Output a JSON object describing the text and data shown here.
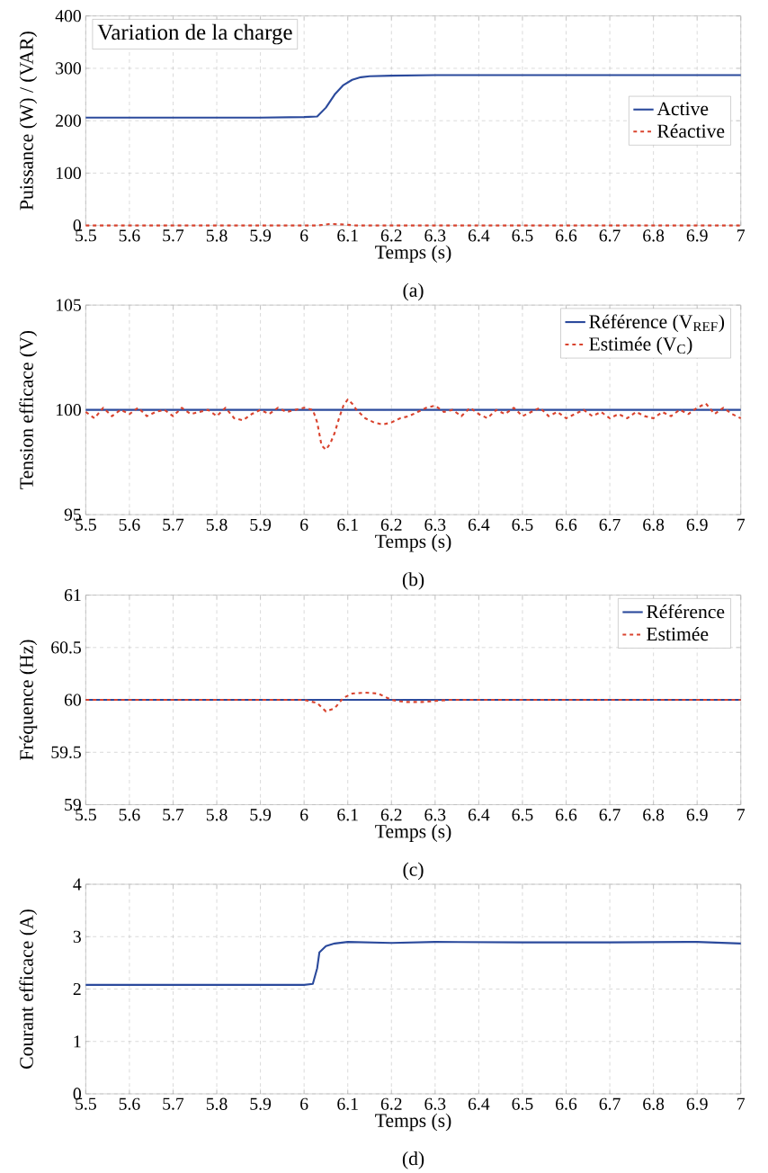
{
  "chart_data": [
    {
      "type": "line",
      "xlabel": "Temps (s)",
      "ylabel": "Puissance (W) / (VAR)",
      "xlim": [
        5.5,
        7
      ],
      "ylim": [
        0,
        400
      ],
      "xticks": [
        5.5,
        5.6,
        5.7,
        5.8,
        5.9,
        6,
        6.1,
        6.2,
        6.3,
        6.4,
        6.5,
        6.6,
        6.7,
        6.8,
        6.9,
        7
      ],
      "yticks": [
        0,
        100,
        200,
        300,
        400
      ],
      "grid": true,
      "legend": "right",
      "annotations": [
        "Variation de la charge",
        "(a)"
      ],
      "series": [
        {
          "name": "Active",
          "color": "#2b4a9c",
          "line_style": "solid",
          "x": [
            5.5,
            5.6,
            5.7,
            5.8,
            5.9,
            6.0,
            6.03,
            6.05,
            6.07,
            6.09,
            6.11,
            6.13,
            6.15,
            6.2,
            6.3,
            6.5,
            6.7,
            6.9,
            7.0
          ],
          "values": [
            206,
            206,
            206,
            206,
            206,
            207,
            208,
            225,
            250,
            268,
            278,
            283,
            285,
            286,
            287,
            287,
            287,
            287,
            287
          ]
        },
        {
          "name": "Réactive",
          "color": "#d9432e",
          "line_style": "dashed",
          "x": [
            5.5,
            6.0,
            6.03,
            6.06,
            6.09,
            6.12,
            7.0
          ],
          "values": [
            0,
            0,
            0,
            3,
            2,
            0,
            0
          ]
        }
      ]
    },
    {
      "type": "line",
      "xlabel": "Temps (s)",
      "ylabel": "Tension efficace (V)",
      "xlim": [
        5.5,
        7
      ],
      "ylim": [
        95,
        105
      ],
      "xticks": [
        5.5,
        5.6,
        5.7,
        5.8,
        5.9,
        6,
        6.1,
        6.2,
        6.3,
        6.4,
        6.5,
        6.6,
        6.7,
        6.8,
        6.9,
        7
      ],
      "yticks": [
        95,
        100,
        105
      ],
      "grid": true,
      "legend": "top right",
      "annotations": [
        "(b)"
      ],
      "series": [
        {
          "name": "Référence (V$_{REF}$)",
          "color": "#2b4a9c",
          "line_style": "solid",
          "x": [
            5.5,
            7.0
          ],
          "values": [
            100,
            100
          ]
        },
        {
          "name": "Estimée (V$_{C}$)",
          "color": "#d9432e",
          "line_style": "dashed",
          "x": [
            5.5,
            5.52,
            5.54,
            5.56,
            5.58,
            5.6,
            5.62,
            5.64,
            5.66,
            5.68,
            5.7,
            5.72,
            5.74,
            5.76,
            5.78,
            5.8,
            5.82,
            5.84,
            5.86,
            5.88,
            5.9,
            5.92,
            5.94,
            5.96,
            5.98,
            6.0,
            6.02,
            6.03,
            6.04,
            6.05,
            6.06,
            6.07,
            6.08,
            6.09,
            6.1,
            6.11,
            6.12,
            6.14,
            6.16,
            6.18,
            6.2,
            6.22,
            6.24,
            6.26,
            6.28,
            6.3,
            6.32,
            6.34,
            6.36,
            6.38,
            6.4,
            6.42,
            6.44,
            6.46,
            6.48,
            6.5,
            6.52,
            6.54,
            6.56,
            6.58,
            6.6,
            6.62,
            6.64,
            6.66,
            6.68,
            6.7,
            6.72,
            6.74,
            6.76,
            6.78,
            6.8,
            6.82,
            6.84,
            6.86,
            6.88,
            6.9,
            6.92,
            6.94,
            6.96,
            6.98,
            7.0
          ],
          "values": [
            99.9,
            99.6,
            100.1,
            99.7,
            100.0,
            99.8,
            100.1,
            99.7,
            99.9,
            100.0,
            99.7,
            100.1,
            99.8,
            99.9,
            100.0,
            99.7,
            100.1,
            99.6,
            99.5,
            99.8,
            100.0,
            99.8,
            100.1,
            99.9,
            100.0,
            100.1,
            100.0,
            99.4,
            98.3,
            98.1,
            98.4,
            98.9,
            99.6,
            100.2,
            100.5,
            100.3,
            100.0,
            99.6,
            99.4,
            99.3,
            99.4,
            99.6,
            99.7,
            99.9,
            100.1,
            100.2,
            99.9,
            100.0,
            99.7,
            100.1,
            99.8,
            99.6,
            100.0,
            99.8,
            100.1,
            99.7,
            99.9,
            100.1,
            99.7,
            99.9,
            99.6,
            99.8,
            100.0,
            99.7,
            99.9,
            99.6,
            99.8,
            99.6,
            99.9,
            99.7,
            99.6,
            99.9,
            99.7,
            100.0,
            99.8,
            100.1,
            100.3,
            99.8,
            100.1,
            99.8,
            99.6
          ]
        }
      ]
    },
    {
      "type": "line",
      "xlabel": "Temps (s)",
      "ylabel": "Fréquence (Hz)",
      "xlim": [
        5.5,
        7
      ],
      "ylim": [
        59,
        61
      ],
      "xticks": [
        5.5,
        5.6,
        5.7,
        5.8,
        5.9,
        6,
        6.1,
        6.2,
        6.3,
        6.4,
        6.5,
        6.6,
        6.7,
        6.8,
        6.9,
        7
      ],
      "yticks": [
        59,
        59.5,
        60,
        60.5,
        61
      ],
      "grid": true,
      "legend": "top right",
      "annotations": [
        "(c)"
      ],
      "series": [
        {
          "name": "Référence",
          "color": "#2b4a9c",
          "line_style": "solid",
          "x": [
            5.5,
            7.0
          ],
          "values": [
            60,
            60
          ]
        },
        {
          "name": "Estimée",
          "color": "#d9432e",
          "line_style": "dashed",
          "x": [
            5.5,
            6.0,
            6.03,
            6.05,
            6.07,
            6.09,
            6.11,
            6.14,
            6.17,
            6.2,
            6.23,
            6.27,
            6.3,
            6.33,
            7.0
          ],
          "values": [
            60,
            60,
            59.97,
            59.89,
            59.92,
            60.02,
            60.06,
            60.07,
            60.06,
            60.0,
            59.98,
            59.98,
            59.99,
            60,
            60
          ]
        }
      ]
    },
    {
      "type": "line",
      "xlabel": "Temps (s)",
      "ylabel": "Courant efficace (A)",
      "xlim": [
        5.5,
        7
      ],
      "ylim": [
        0,
        4
      ],
      "xticks": [
        5.5,
        5.6,
        5.7,
        5.8,
        5.9,
        6,
        6.1,
        6.2,
        6.3,
        6.4,
        6.5,
        6.6,
        6.7,
        6.8,
        6.9,
        7
      ],
      "yticks": [
        0,
        1,
        2,
        3,
        4
      ],
      "grid": true,
      "annotations": [
        "(d)"
      ],
      "series": [
        {
          "color": "#2b4a9c",
          "line_style": "solid",
          "x": [
            5.5,
            5.6,
            5.7,
            5.8,
            5.9,
            6.0,
            6.02,
            6.03,
            6.035,
            6.05,
            6.07,
            6.1,
            6.2,
            6.3,
            6.5,
            6.7,
            6.9,
            7.0
          ],
          "values": [
            2.08,
            2.08,
            2.08,
            2.08,
            2.08,
            2.08,
            2.1,
            2.4,
            2.7,
            2.82,
            2.87,
            2.9,
            2.88,
            2.9,
            2.89,
            2.89,
            2.9,
            2.87
          ]
        }
      ]
    }
  ]
}
